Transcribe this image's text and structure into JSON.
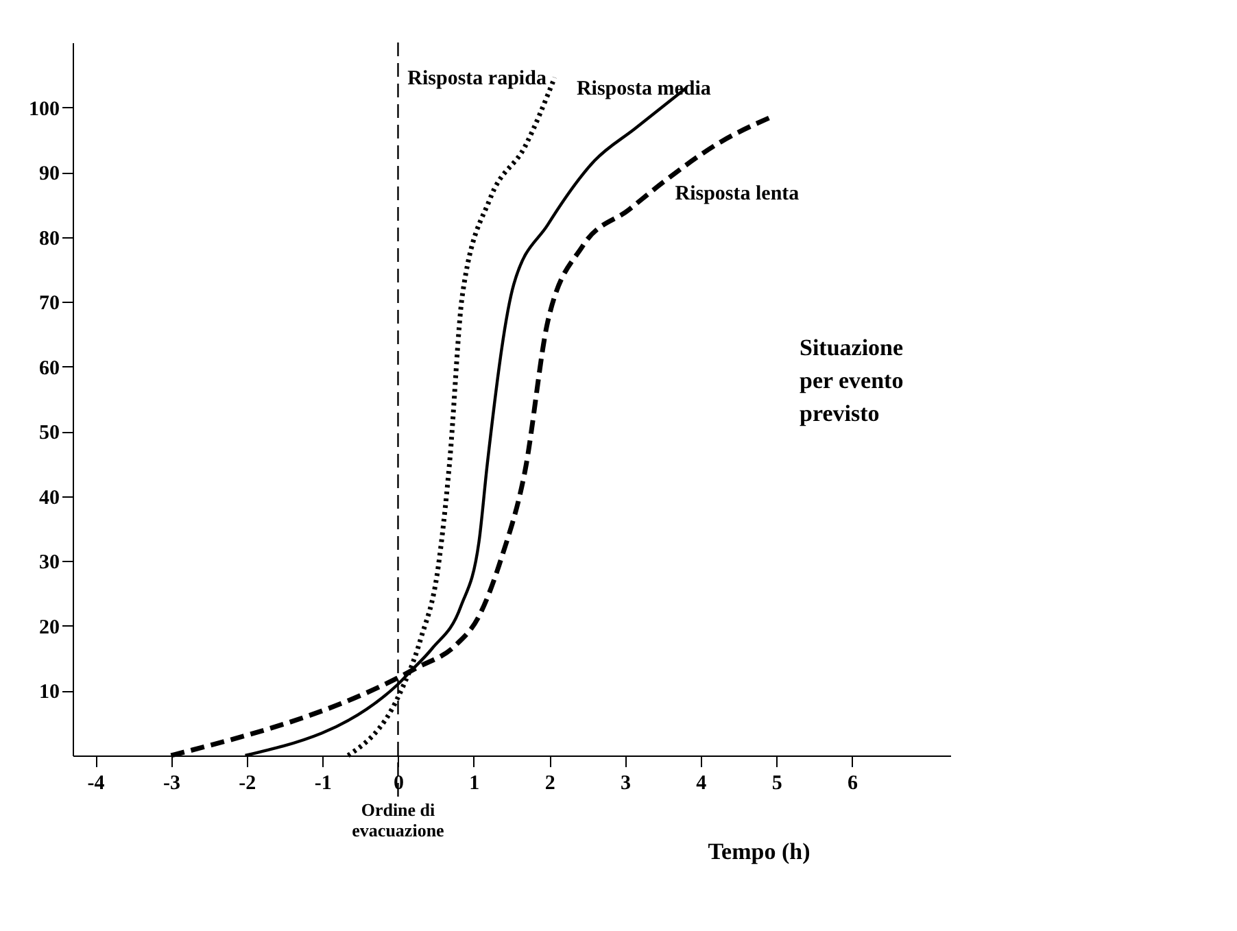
{
  "chart_data": {
    "type": "line",
    "xlabel": "Tempo (h)",
    "xlim": [
      -4.3,
      7.3
    ],
    "ylim": [
      0,
      110
    ],
    "xticks": [
      -4,
      -3,
      -2,
      -1,
      0,
      1,
      2,
      3,
      4,
      5,
      6
    ],
    "yticks": [
      10,
      20,
      30,
      40,
      50,
      60,
      70,
      80,
      90,
      100
    ],
    "grid": false,
    "marker": "none",
    "series": [
      {
        "name": "Risposta rapida",
        "color": "#000000",
        "line_style": "dotted",
        "x": [
          -0.66,
          0,
          0.3,
          0.53,
          0.68,
          0.85,
          1.22,
          1.68,
          2.07
        ],
        "values": [
          0,
          9,
          18,
          29,
          45,
          71,
          86,
          94,
          104.6
        ]
      },
      {
        "name": "Risposta media",
        "color": "#000000",
        "line_style": "solid",
        "x": [
          -2.02,
          0,
          0.15,
          0.45,
          0.83,
          1.07,
          1.18,
          1.53,
          1.98,
          2.6,
          3.13,
          3.81
        ],
        "values": [
          0,
          11,
          12.8,
          16.5,
          23,
          33,
          45,
          72.7,
          81.9,
          91.8,
          96.7,
          103
        ]
      },
      {
        "name": "Risposta lenta",
        "color": "#000000",
        "line_style": "dashed",
        "x": [
          -3,
          0,
          0.26,
          0.76,
          1.07,
          1.37,
          1.68,
          1.98,
          2.44,
          3.05,
          3.51,
          4.27,
          4.93
        ],
        "values": [
          0,
          12,
          13.6,
          17,
          21.5,
          30.6,
          44,
          67,
          78.6,
          84.2,
          88.5,
          94.7,
          98.5
        ]
      }
    ],
    "ref_lines": [
      {
        "axis": "x",
        "value": 0,
        "label": "Ordine di evacuazione",
        "color": "#000000",
        "line_style": "dashed"
      }
    ],
    "annotations": [
      "Situazione per evento previsto"
    ]
  }
}
